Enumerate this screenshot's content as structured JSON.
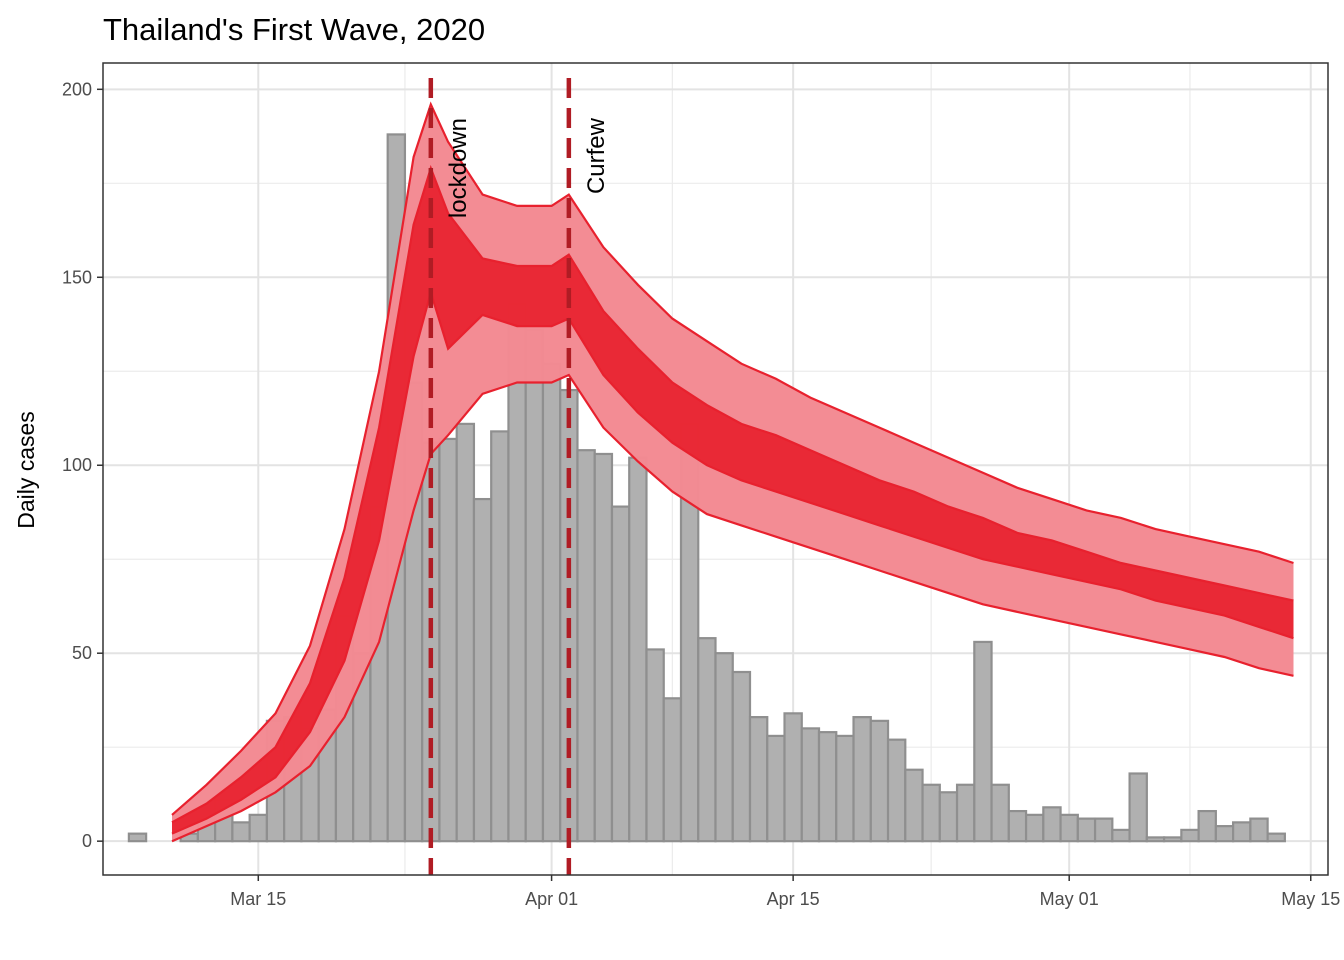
{
  "chart_data": {
    "type": "bar",
    "title": "Thailand's First Wave, 2020",
    "xlabel": "",
    "ylabel": "Daily cases",
    "xlim": [
      "2020-03-06",
      "2020-05-16"
    ],
    "ylim": [
      -9,
      207
    ],
    "grid": true,
    "x_ticks": [
      {
        "date": "2020-03-15",
        "label": "Mar 15"
      },
      {
        "date": "2020-04-01",
        "label": "Apr 01"
      },
      {
        "date": "2020-04-15",
        "label": "Apr 15"
      },
      {
        "date": "2020-05-01",
        "label": "May 01"
      },
      {
        "date": "2020-05-15",
        "label": "May 15"
      }
    ],
    "y_ticks": [
      0,
      50,
      100,
      150,
      200
    ],
    "bars": {
      "color": "#b0b0b0",
      "edge": "#8f8f8f",
      "start_date": "2020-03-08",
      "values": [
        2,
        0,
        0,
        2,
        6,
        11,
        5,
        7,
        32,
        33,
        30,
        35,
        60,
        50,
        89,
        188,
        122,
        106,
        107,
        111,
        91,
        109,
        143,
        136,
        127,
        120,
        104,
        103,
        89,
        102,
        51,
        38,
        111,
        54,
        50,
        45,
        33,
        28,
        34,
        30,
        29,
        28,
        33,
        32,
        27,
        19,
        15,
        13,
        15,
        53,
        15,
        8,
        7,
        9,
        7,
        6,
        6,
        3,
        18,
        1,
        1,
        3,
        8,
        4,
        5,
        6,
        2,
        0
      ]
    },
    "series": [
      {
        "role": "outer band",
        "color": "#f38a92",
        "dates": [
          "2020-03-10",
          "2020-03-12",
          "2020-03-14",
          "2020-03-16",
          "2020-03-18",
          "2020-03-20",
          "2020-03-22",
          "2020-03-24",
          "2020-03-25",
          "2020-03-26",
          "2020-03-28",
          "2020-03-30",
          "2020-04-01",
          "2020-04-02",
          "2020-04-04",
          "2020-04-06",
          "2020-04-08",
          "2020-04-10",
          "2020-04-12",
          "2020-04-14",
          "2020-04-16",
          "2020-04-18",
          "2020-04-20",
          "2020-04-22",
          "2020-04-24",
          "2020-04-26",
          "2020-04-28",
          "2020-04-30",
          "2020-05-02",
          "2020-05-04",
          "2020-05-06",
          "2020-05-08",
          "2020-05-10",
          "2020-05-12",
          "2020-05-14"
        ],
        "upper": [
          7,
          15,
          24,
          34,
          52,
          83,
          125,
          182,
          196,
          186,
          172,
          169,
          169,
          172,
          158,
          148,
          139,
          133,
          127,
          123,
          118,
          114,
          110,
          106,
          102,
          98,
          94,
          91,
          88,
          86,
          83,
          81,
          79,
          77,
          74
        ],
        "lower": [
          0,
          4,
          8,
          13,
          20,
          33,
          53,
          88,
          103,
          108,
          119,
          122,
          122,
          124,
          110,
          101,
          93,
          87,
          84,
          81,
          78,
          75,
          72,
          69,
          66,
          63,
          61,
          59,
          57,
          55,
          53,
          51,
          49,
          46,
          44
        ]
      },
      {
        "role": "inner band",
        "color": "#e8212e",
        "dates": [
          "2020-03-10",
          "2020-03-12",
          "2020-03-14",
          "2020-03-16",
          "2020-03-18",
          "2020-03-20",
          "2020-03-22",
          "2020-03-24",
          "2020-03-25",
          "2020-03-26",
          "2020-03-28",
          "2020-03-30",
          "2020-04-01",
          "2020-04-02",
          "2020-04-04",
          "2020-04-06",
          "2020-04-08",
          "2020-04-10",
          "2020-04-12",
          "2020-04-14",
          "2020-04-16",
          "2020-04-18",
          "2020-04-20",
          "2020-04-22",
          "2020-04-24",
          "2020-04-26",
          "2020-04-28",
          "2020-04-30",
          "2020-05-02",
          "2020-05-04",
          "2020-05-06",
          "2020-05-08",
          "2020-05-10",
          "2020-05-12",
          "2020-05-14"
        ],
        "upper": [
          5,
          10,
          17,
          25,
          42,
          70,
          110,
          164,
          179,
          167,
          155,
          153,
          153,
          156,
          141,
          131,
          122,
          116,
          111,
          108,
          104,
          100,
          96,
          93,
          89,
          86,
          82,
          80,
          77,
          74,
          72,
          70,
          68,
          66,
          64
        ],
        "lower": [
          2,
          6,
          11,
          17,
          29,
          48,
          80,
          129,
          146,
          131,
          140,
          137,
          137,
          139,
          124,
          114,
          106,
          100,
          96,
          93,
          90,
          87,
          84,
          81,
          78,
          75,
          73,
          71,
          69,
          67,
          64,
          62,
          60,
          57,
          54
        ]
      }
    ],
    "vlines": [
      {
        "date": "2020-03-25",
        "label": "lockdown",
        "color": "#b01c24"
      },
      {
        "date": "2020-04-02",
        "label": "Curfew",
        "color": "#b01c24"
      }
    ]
  }
}
